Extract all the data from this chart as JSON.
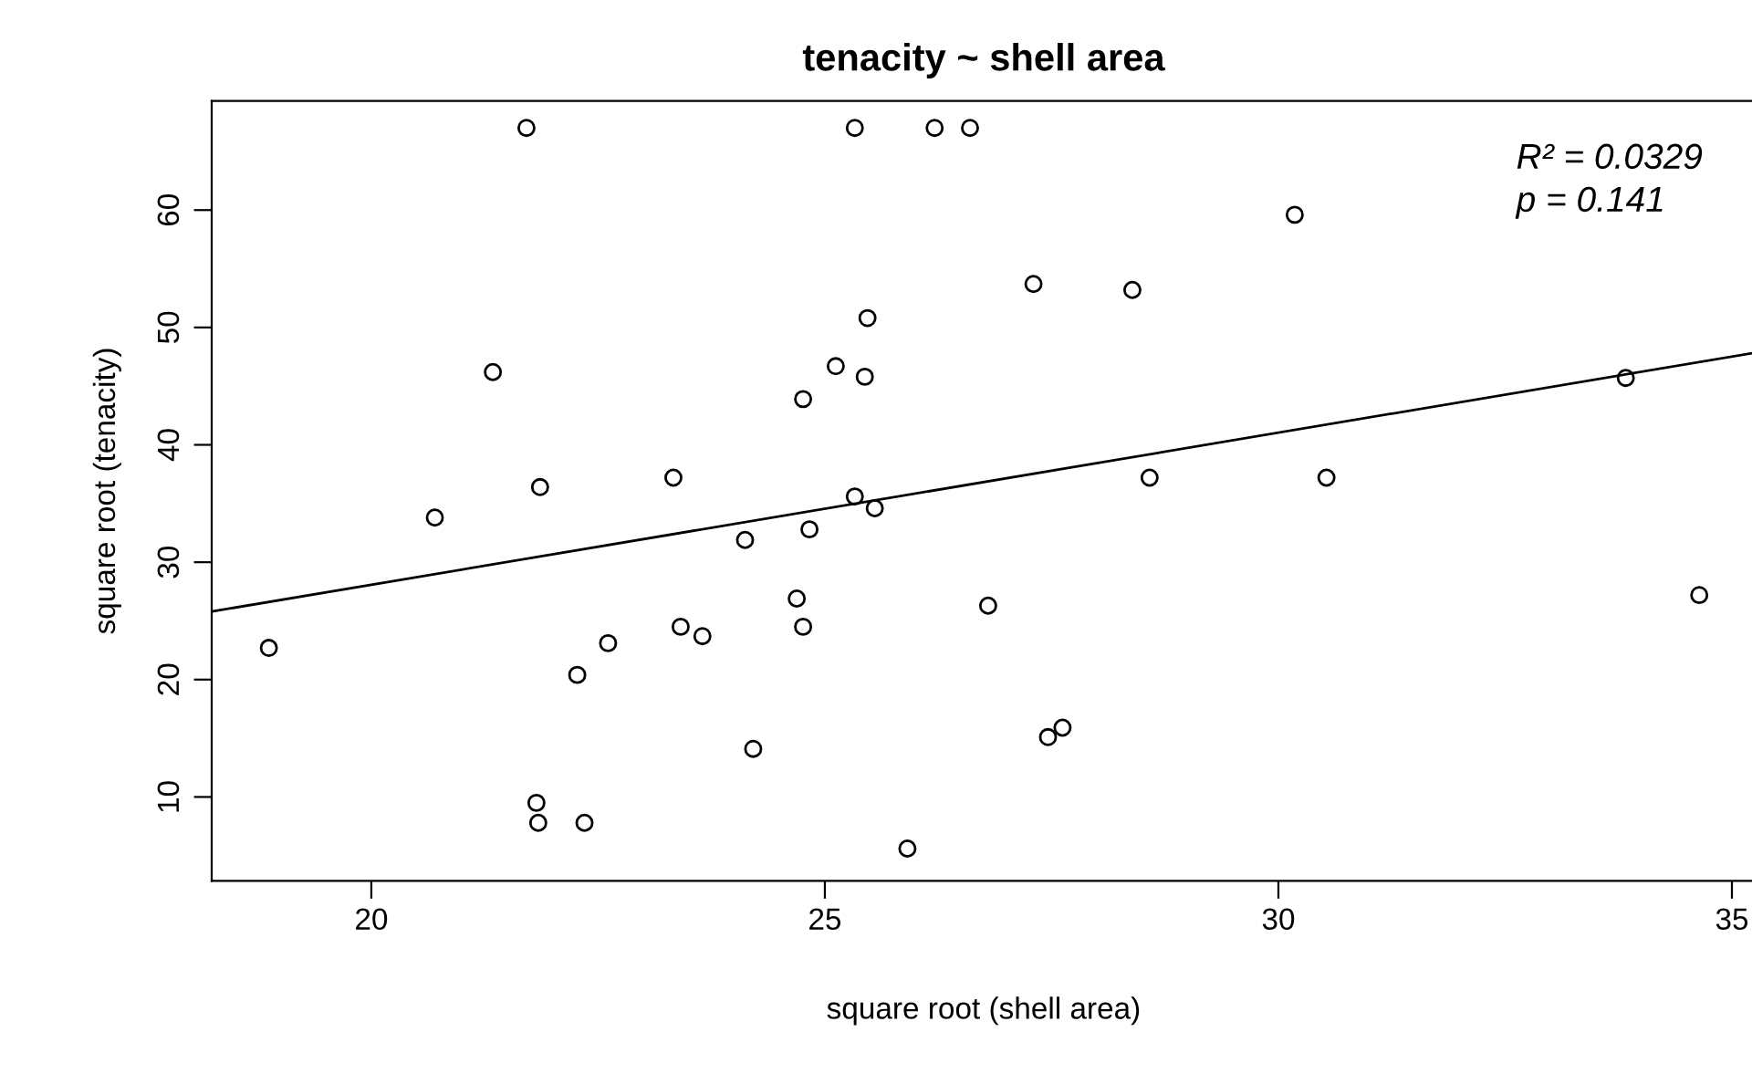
{
  "chart_data": {
    "type": "scatter",
    "title": "tenacity ~ shell area",
    "xlabel": "square root (shell area)",
    "ylabel": "square root (tenacity)",
    "annotations": [
      "R² = 0.0329",
      "p = 0.141"
    ],
    "xlim": [
      18.24,
      35.26
    ],
    "ylim": [
      2.85,
      69.3
    ],
    "xticks": [
      20,
      25,
      30,
      35
    ],
    "yticks": [
      10,
      20,
      30,
      40,
      50,
      60
    ],
    "grid": false,
    "legend": false,
    "series": [
      {
        "color": "#000000",
        "marker": "circle",
        "x": [
          21.71,
          25.33,
          26.21,
          26.6,
          30.18,
          27.3,
          28.39,
          25.47,
          25.12,
          25.44,
          21.34,
          24.76,
          33.83,
          23.33,
          21.86,
          28.58,
          30.53,
          20.7,
          25.33,
          25.55,
          24.83,
          24.12,
          26.8,
          24.69,
          34.64,
          18.87,
          22.61,
          23.41,
          23.65,
          24.76,
          22.27,
          24.21,
          27.46,
          27.62,
          21.82,
          21.84,
          22.35,
          25.91
        ],
        "values": [
          67.0,
          67.0,
          67.0,
          67.0,
          59.6,
          53.7,
          53.2,
          50.8,
          46.7,
          45.8,
          46.2,
          43.9,
          45.7,
          37.2,
          36.4,
          37.2,
          37.2,
          33.8,
          35.6,
          34.6,
          32.8,
          31.9,
          26.3,
          26.9,
          27.2,
          22.7,
          23.1,
          24.5,
          23.7,
          24.5,
          20.4,
          14.1,
          15.1,
          15.9,
          9.5,
          7.8,
          7.8,
          5.6
        ]
      },
      {
        "type": "line",
        "color": "#000000",
        "x": [
          18.24,
          35.22
        ],
        "values": [
          25.8,
          47.8
        ],
        "line_style": "solid",
        "marker": "none"
      }
    ]
  }
}
